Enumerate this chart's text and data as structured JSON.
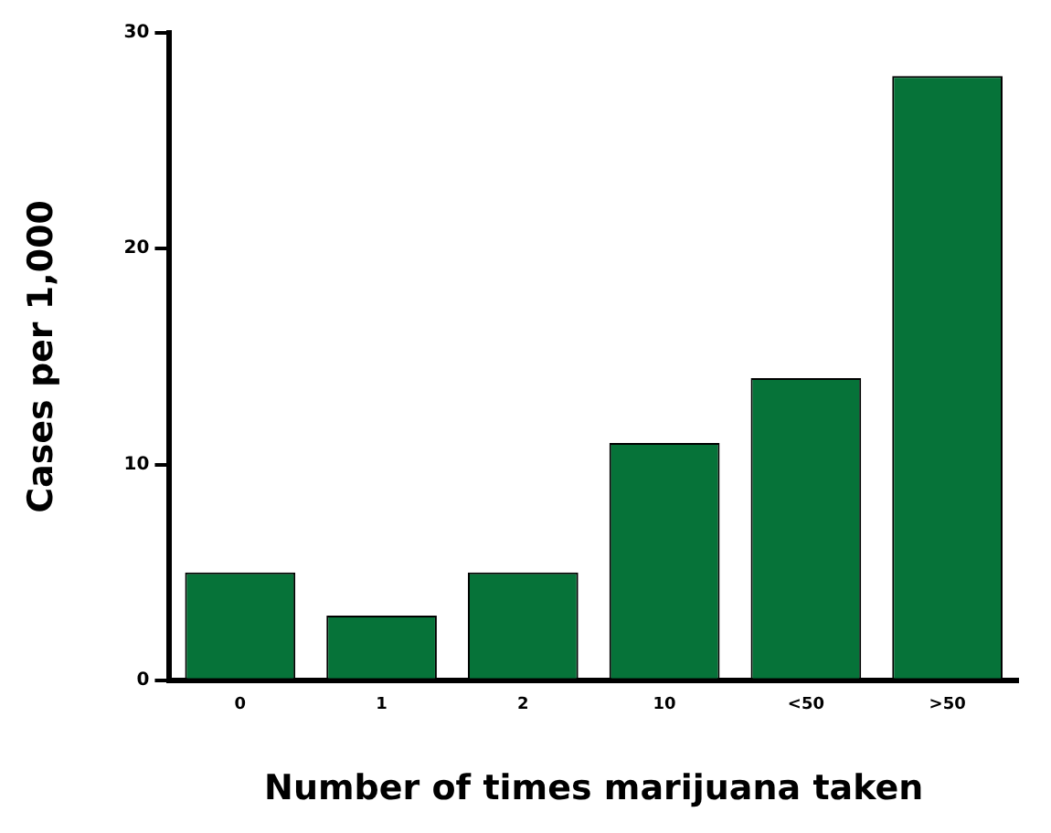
{
  "chart_data": {
    "type": "bar",
    "xlabel": "Number of times marijuana taken",
    "ylabel": "Cases per 1,000",
    "categories": [
      "0",
      "1",
      "2",
      "10",
      "<50",
      ">50"
    ],
    "values": [
      5,
      3,
      5,
      11,
      14,
      28
    ],
    "color": "#067339",
    "ylim": [
      0,
      30
    ],
    "yticks": [
      0,
      10,
      20,
      30
    ],
    "grid": false,
    "legend": false
  }
}
